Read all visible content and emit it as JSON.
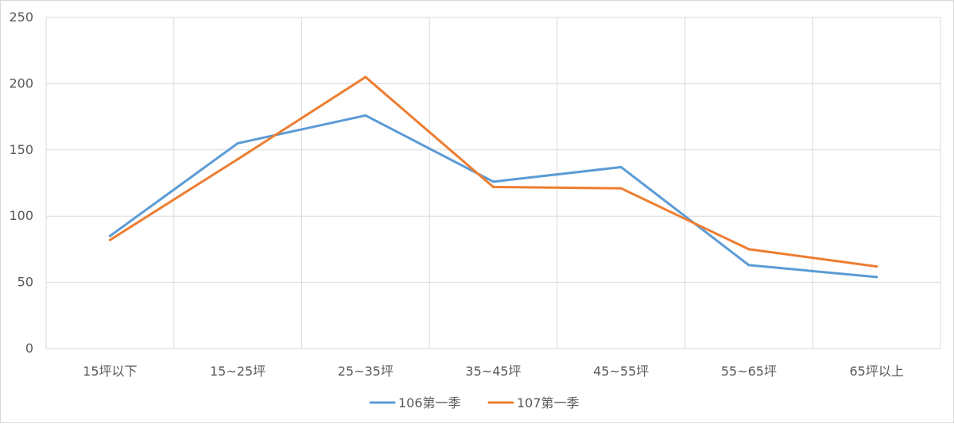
{
  "chart_data": {
    "type": "line",
    "title": "",
    "xlabel": "",
    "ylabel": "",
    "categories": [
      "15坪以下",
      "15~25坪",
      "25~35坪",
      "35~45坪",
      "45~55坪",
      "55~65坪",
      "65坪以上"
    ],
    "ylim": [
      0,
      250
    ],
    "yticks": [
      0,
      50,
      100,
      150,
      200,
      250
    ],
    "grid": true,
    "legend_position": "bottom",
    "series": [
      {
        "name": "106第一季",
        "color": "#5b9bd5",
        "values": [
          85,
          155,
          176,
          126,
          137,
          63,
          54
        ]
      },
      {
        "name": "107第一季",
        "color": "#ed7d31",
        "values": [
          82,
          143,
          205,
          122,
          121,
          75,
          62
        ]
      }
    ]
  }
}
